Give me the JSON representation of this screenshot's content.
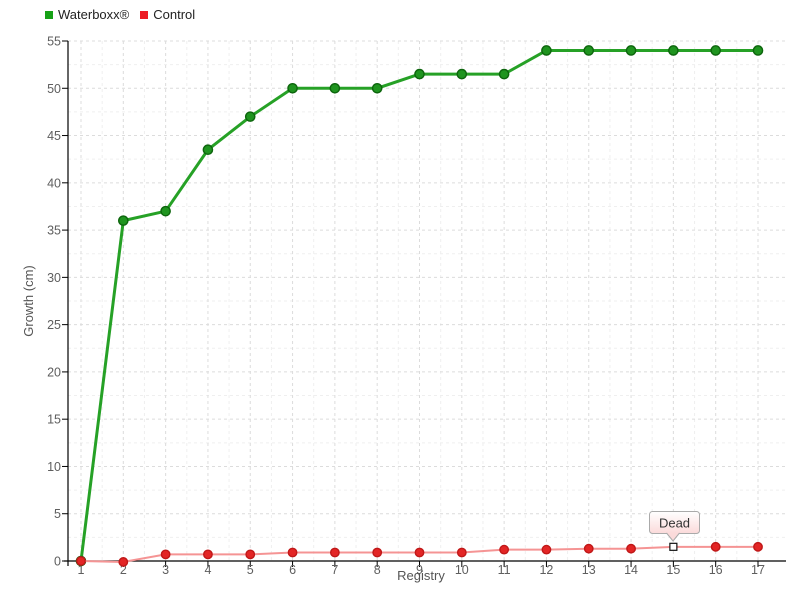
{
  "legend": {
    "items": [
      {
        "label": "Waterboxx®",
        "color": "#16a116"
      },
      {
        "label": "Control",
        "color": "#ed1c24"
      }
    ]
  },
  "chart_data": {
    "type": "line",
    "title": "",
    "xlabel": "Registry",
    "ylabel": "Growth (cm)",
    "x": [
      1,
      2,
      3,
      4,
      5,
      6,
      7,
      8,
      9,
      10,
      11,
      12,
      13,
      14,
      15,
      16,
      17
    ],
    "x_tick_labels": [
      "1",
      "2",
      "3",
      "4",
      "5",
      "6",
      "7",
      "8",
      "9",
      "10",
      "11",
      "12",
      "13",
      "14",
      "15",
      "16",
      "17"
    ],
    "y_tick_labels": [
      "0",
      "5",
      "10",
      "15",
      "20",
      "25",
      "30",
      "35",
      "40",
      "45",
      "50",
      "55"
    ],
    "xlim": [
      1,
      17
    ],
    "ylim": [
      0,
      55
    ],
    "grid": {
      "style": "dashed",
      "major_color": "#dcdcdc",
      "minor_color": "#efefef"
    },
    "legend_position": "top-left",
    "series": [
      {
        "id": "waterboxx",
        "name": "Waterboxx®",
        "line_color": "#26a126",
        "point_color": "#1f941f",
        "point_edge": "#0d650d",
        "line_width": 3,
        "point_radius": 4.6,
        "values": [
          0,
          36,
          37,
          43.5,
          47,
          50,
          50,
          50,
          51.5,
          51.5,
          51.5,
          54,
          54,
          54,
          54,
          54,
          54
        ]
      },
      {
        "id": "control",
        "name": "Control",
        "line_color": "#f59494",
        "point_color": "#e32525",
        "point_edge": "#c01818",
        "line_width": 2,
        "point_radius": 4.2,
        "values": [
          0,
          -0.1,
          0.7,
          0.7,
          0.7,
          0.9,
          0.9,
          0.9,
          0.9,
          0.9,
          1.2,
          1.2,
          1.3,
          1.3,
          1.5,
          1.5,
          1.5
        ]
      }
    ],
    "annotations": [
      {
        "text": "Dead",
        "series": "Control",
        "x": 15,
        "value": 1.5,
        "marker": "white-square"
      }
    ]
  }
}
